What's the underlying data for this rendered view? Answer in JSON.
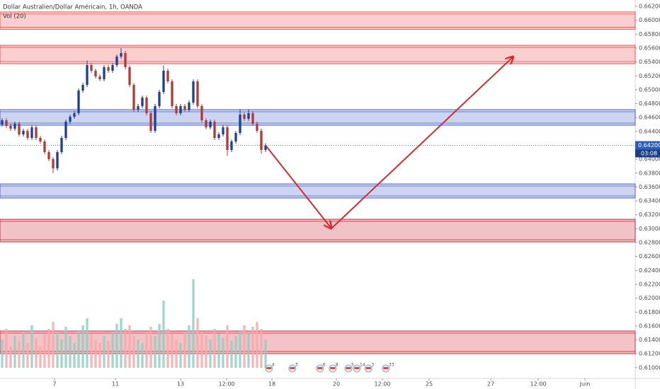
{
  "chart_data": {
    "type": "candlestick",
    "title": "Dollar Australien/Dollar Américain, 1h, OANDA",
    "subtitle": "Vol (20)",
    "up_color": "#1f3f93",
    "down_color": "#b03a34",
    "volume_up_color": "#8fcfc2",
    "volume_down_color": "#f4a9a9",
    "x": [
      0,
      1,
      2,
      3,
      4,
      5,
      6,
      7,
      8,
      9,
      10,
      11,
      12,
      13,
      14,
      15,
      16,
      17,
      18,
      19,
      20,
      21,
      22,
      23,
      24,
      25,
      26,
      27,
      28,
      29,
      30,
      31,
      32,
      33,
      34,
      35,
      36,
      37,
      38,
      39,
      40,
      41,
      42,
      43,
      44,
      45,
      46,
      47,
      48,
      49,
      50,
      51,
      52,
      53,
      54,
      55,
      56,
      57,
      58,
      59,
      60,
      61,
      62
    ],
    "open": [
      0.645,
      0.64561,
      0.6448,
      0.64439,
      0.6451,
      0.64358,
      0.64409,
      0.64307,
      0.6446,
      0.64307,
      0.64256,
      0.64103,
      0.64002,
      0.63869,
      0.64103,
      0.64307,
      0.64541,
      0.64612,
      0.64663,
      0.64989,
      0.6507,
      0.65355,
      0.65274,
      0.65192,
      0.65152,
      0.65325,
      0.65274,
      0.65355,
      0.65477,
      0.65528,
      0.65325,
      0.6507,
      0.64714,
      0.64765,
      0.64887,
      0.64663,
      0.64409,
      0.64765,
      0.64968,
      0.65274,
      0.65121,
      0.64765,
      0.64663,
      0.64765,
      0.64714,
      0.64816,
      0.65121,
      0.64765,
      0.64561,
      0.6446,
      0.64541,
      0.64307,
      0.64358,
      0.6446,
      0.64134,
      0.64256,
      0.64378,
      0.64643,
      0.64582,
      0.64663,
      0.6451,
      0.64409,
      0.64134
    ],
    "high": [
      0.64591,
      0.64591,
      0.6451,
      0.6454,
      0.6454,
      0.64439,
      0.64439,
      0.6449,
      0.6449,
      0.64337,
      0.64286,
      0.64133,
      0.64032,
      0.64133,
      0.64337,
      0.64571,
      0.64642,
      0.64693,
      0.65019,
      0.651,
      0.6542,
      0.65385,
      0.65304,
      0.65222,
      0.65355,
      0.65355,
      0.65385,
      0.65507,
      0.656,
      0.65558,
      0.65355,
      0.651,
      0.64795,
      0.64917,
      0.64917,
      0.64693,
      0.64795,
      0.64998,
      0.6535,
      0.65304,
      0.65151,
      0.64795,
      0.64795,
      0.64795,
      0.64846,
      0.65151,
      0.65151,
      0.64795,
      0.64591,
      0.64571,
      0.64571,
      0.64388,
      0.6449,
      0.6449,
      0.64286,
      0.64408,
      0.6472,
      0.64673,
      0.6472,
      0.64693,
      0.6454,
      0.64439,
      0.6423
    ],
    "low": [
      0.6447,
      0.6445,
      0.64409,
      0.64409,
      0.64328,
      0.64328,
      0.64277,
      0.64277,
      0.64277,
      0.64226,
      0.64073,
      0.63972,
      0.638,
      0.63839,
      0.64073,
      0.64277,
      0.64511,
      0.64582,
      0.64633,
      0.64959,
      0.6504,
      0.65244,
      0.65162,
      0.65122,
      0.65122,
      0.65244,
      0.65244,
      0.65325,
      0.65447,
      0.65295,
      0.6504,
      0.64684,
      0.64684,
      0.64735,
      0.64633,
      0.64379,
      0.64379,
      0.64735,
      0.64938,
      0.65091,
      0.64735,
      0.64633,
      0.64633,
      0.64684,
      0.64684,
      0.64786,
      0.64735,
      0.64531,
      0.6443,
      0.6443,
      0.64277,
      0.64277,
      0.64328,
      0.6405,
      0.64104,
      0.64226,
      0.64348,
      0.64552,
      0.64552,
      0.6448,
      0.64379,
      0.6408,
      0.64104
    ],
    "close": [
      0.64561,
      0.6448,
      0.64439,
      0.6451,
      0.64358,
      0.64409,
      0.64307,
      0.6446,
      0.64307,
      0.64256,
      0.64103,
      0.64002,
      0.63869,
      0.64103,
      0.64307,
      0.64541,
      0.64612,
      0.64663,
      0.64989,
      0.6507,
      0.65355,
      0.65274,
      0.65192,
      0.65152,
      0.65325,
      0.65274,
      0.65355,
      0.65477,
      0.65528,
      0.65325,
      0.6507,
      0.64714,
      0.64765,
      0.64887,
      0.64663,
      0.64409,
      0.64765,
      0.64968,
      0.65274,
      0.65121,
      0.64765,
      0.64663,
      0.64765,
      0.64714,
      0.64816,
      0.65121,
      0.64765,
      0.64561,
      0.6446,
      0.64541,
      0.64307,
      0.64358,
      0.6446,
      0.64134,
      0.64256,
      0.64378,
      0.64643,
      0.64582,
      0.64663,
      0.6451,
      0.64409,
      0.64134,
      0.642
    ],
    "volume": [
      40,
      55,
      30,
      45,
      38,
      50,
      35,
      60,
      42,
      30,
      48,
      55,
      65,
      50,
      40,
      58,
      45,
      35,
      52,
      60,
      70,
      48,
      40,
      35,
      45,
      38,
      50,
      62,
      70,
      55,
      60,
      45,
      40,
      35,
      50,
      58,
      45,
      62,
      95,
      55,
      48,
      40,
      35,
      50,
      60,
      125,
      70,
      50,
      45,
      40,
      55,
      48,
      42,
      60,
      38,
      45,
      52,
      60,
      50,
      58,
      65,
      55,
      40
    ],
    "xlim": [
      -0.5,
      149
    ],
    "ylim": [
      0.60846,
      0.66292
    ],
    "xticks": [
      {
        "value": 12.33,
        "label": "7"
      },
      {
        "value": 26.67,
        "label": "11"
      },
      {
        "value": 42,
        "label": "13"
      },
      {
        "value": 52.83,
        "label": "12:00"
      },
      {
        "value": 63.5,
        "label": "18"
      },
      {
        "value": 78.67,
        "label": "20"
      },
      {
        "value": 89.5,
        "label": "12:00"
      },
      {
        "value": 100.5,
        "label": "25"
      },
      {
        "value": 115,
        "label": "27"
      },
      {
        "value": 126.17,
        "label": "12:00"
      },
      {
        "value": 137.17,
        "label": "Juin"
      }
    ],
    "yticks": [
      {
        "value": 0.662,
        "label": "0.66200"
      },
      {
        "value": 0.66,
        "label": "0.66000"
      },
      {
        "value": 0.658,
        "label": "0.65800"
      },
      {
        "value": 0.656,
        "label": "0.65600"
      },
      {
        "value": 0.654,
        "label": "0.65400"
      },
      {
        "value": 0.652,
        "label": "0.65200"
      },
      {
        "value": 0.65,
        "label": "0.65000"
      },
      {
        "value": 0.648,
        "label": "0.64800"
      },
      {
        "value": 0.646,
        "label": "0.64600"
      },
      {
        "value": 0.644,
        "label": "0.64400"
      },
      {
        "value": 0.642,
        "label": "0.64200"
      },
      {
        "value": 0.64,
        "label": "0.64000"
      },
      {
        "value": 0.638,
        "label": "0.63800"
      },
      {
        "value": 0.636,
        "label": "0.63600"
      },
      {
        "value": 0.634,
        "label": "0.63400"
      },
      {
        "value": 0.632,
        "label": "0.63200"
      },
      {
        "value": 0.63,
        "label": "0.63000"
      },
      {
        "value": 0.628,
        "label": "0.62800"
      },
      {
        "value": 0.626,
        "label": "0.62600"
      },
      {
        "value": 0.624,
        "label": "0.62400"
      },
      {
        "value": 0.622,
        "label": "0.62200"
      },
      {
        "value": 0.62,
        "label": "0.62000"
      },
      {
        "value": 0.618,
        "label": "0.61800"
      },
      {
        "value": 0.616,
        "label": "0.61600"
      },
      {
        "value": 0.614,
        "label": "0.61400"
      },
      {
        "value": 0.612,
        "label": "0.61200"
      },
      {
        "value": 0.61,
        "label": "0.61000"
      }
    ],
    "last_price": {
      "value": 0.642,
      "label": "0.64200"
    },
    "countdown": "03:08",
    "zones": [
      {
        "low": 0.6587,
        "high": 0.6612,
        "color": "#f05252"
      },
      {
        "low": 0.65376,
        "high": 0.6564,
        "color": "#f05252"
      },
      {
        "low": 0.6449,
        "high": 0.64714,
        "color": "#4a64c8"
      },
      {
        "low": 0.63442,
        "high": 0.63645,
        "color": "#4a64c8"
      },
      {
        "low": 0.62811,
        "high": 0.63136,
        "color": "#c8283a"
      },
      {
        "low": 0.61203,
        "high": 0.61528,
        "color": "#d8283a"
      }
    ],
    "arrow": {
      "x": [
        62,
        77.5,
        120.3
      ],
      "y": [
        0.642,
        0.63004,
        0.65477
      ],
      "color": "#d02e2e"
    },
    "events": [
      {
        "x": 62.8,
        "label": "4"
      },
      {
        "x": 68.3,
        "label": "3"
      },
      {
        "x": 74.8,
        "label": "6"
      },
      {
        "x": 77.8,
        "label": "8"
      },
      {
        "x": 81.5,
        "label": "5"
      },
      {
        "x": 83.5,
        "label": "14"
      },
      {
        "x": 86.2,
        "label": "3"
      },
      {
        "x": 90.3,
        "label": "33"
      }
    ]
  }
}
